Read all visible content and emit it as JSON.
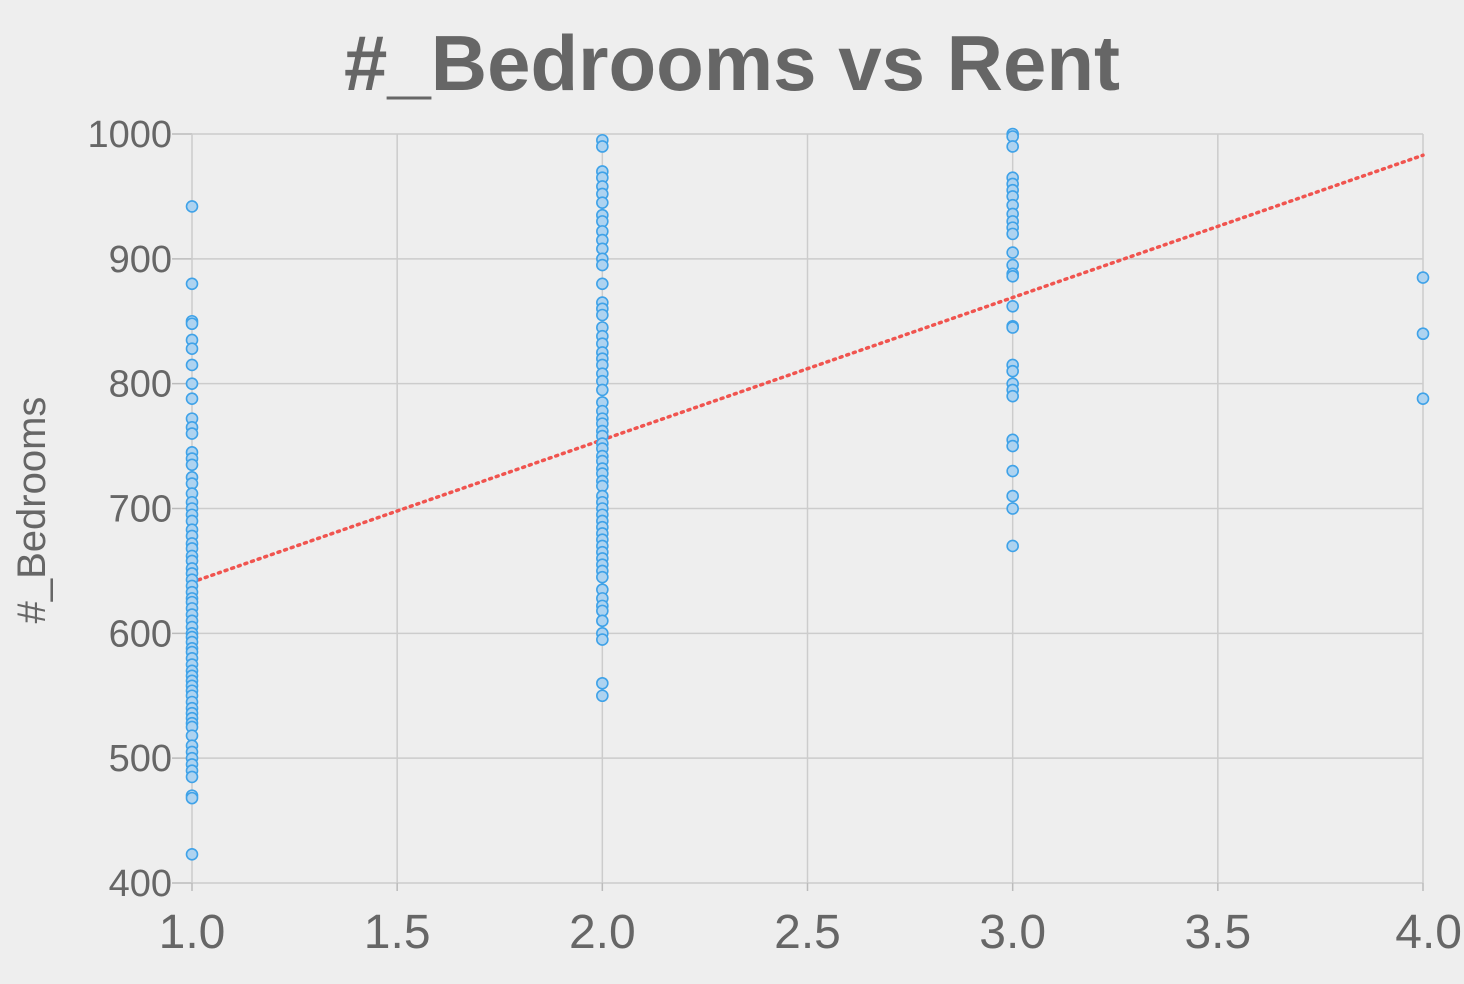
{
  "chart_data": {
    "type": "scatter",
    "title": "#_Bedrooms vs Rent",
    "xlabel": "",
    "ylabel": "#_Bedrooms",
    "xlim": [
      1.0,
      4.0
    ],
    "ylim": [
      400,
      1000
    ],
    "x_ticks": [
      "1.0",
      "1.5",
      "2.0",
      "2.5",
      "3.0",
      "3.5",
      "4.0"
    ],
    "y_ticks": [
      "400",
      "500",
      "600",
      "700",
      "800",
      "900",
      "1000"
    ],
    "grid": true,
    "colors": {
      "background": "#eeeeee",
      "points_stroke": "#3fa2e8",
      "points_fill": "#aed3f0",
      "trend_line": "#f0544f",
      "text": "#666666",
      "grid": "#cccccc"
    },
    "series": [
      {
        "x": 1,
        "y": [
          942,
          880,
          850,
          848,
          835,
          828,
          815,
          800,
          788,
          772,
          765,
          760,
          745,
          740,
          735,
          725,
          720,
          712,
          705,
          700,
          695,
          690,
          683,
          678,
          672,
          668,
          662,
          658,
          652,
          648,
          643,
          638,
          633,
          628,
          625,
          620,
          615,
          610,
          605,
          600,
          597,
          593,
          588,
          585,
          580,
          575,
          570,
          566,
          562,
          558,
          554,
          550,
          545,
          540,
          536,
          532,
          528,
          525,
          518,
          510,
          505,
          500,
          495,
          490,
          485,
          470,
          468,
          423
        ]
      },
      {
        "x": 2,
        "y": [
          995,
          990,
          970,
          965,
          958,
          952,
          945,
          935,
          930,
          922,
          915,
          908,
          900,
          895,
          880,
          865,
          860,
          855,
          845,
          838,
          832,
          825,
          820,
          815,
          808,
          802,
          795,
          785,
          778,
          772,
          768,
          762,
          758,
          752,
          748,
          742,
          738,
          732,
          728,
          722,
          718,
          710,
          705,
          700,
          695,
          690,
          685,
          680,
          675,
          670,
          665,
          660,
          655,
          650,
          645,
          635,
          628,
          622,
          618,
          610,
          600,
          595,
          560,
          550
        ]
      },
      {
        "x": 3,
        "y": [
          1000,
          998,
          990,
          965,
          960,
          955,
          950,
          943,
          936,
          930,
          925,
          920,
          905,
          895,
          888,
          886,
          862,
          846,
          845,
          815,
          810,
          800,
          795,
          790,
          755,
          750,
          730,
          710,
          700,
          670
        ]
      },
      {
        "x": 4,
        "y": [
          885,
          840,
          788
        ]
      }
    ],
    "trend_line": {
      "x": [
        1.0,
        4.0
      ],
      "y": [
        641,
        983
      ]
    }
  }
}
